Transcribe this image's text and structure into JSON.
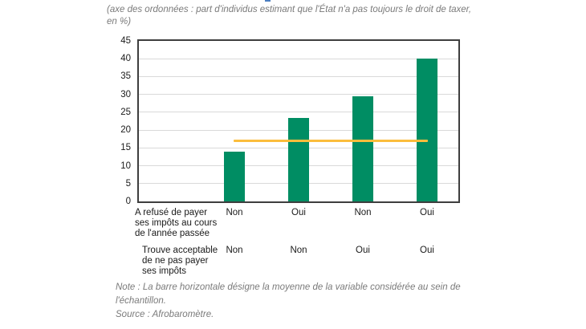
{
  "figure": {
    "axis_note": "(axe des ordonnées : part d'individus estimant que l'État n'a pas toujours le droit de taxer, en %)",
    "note": "Note : La barre horizontale désigne la moyenne de la variable considérée au sein de l'échantillon.",
    "source": "Source : Afrobaromètre."
  },
  "chart_data": {
    "type": "bar",
    "ylabel": "part d'individus estimant que l'État n'a pas toujours le droit de taxer, en %",
    "ylim": [
      0,
      45
    ],
    "ytick_step": 5,
    "grid": true,
    "bar_color": "#008d63",
    "values": [
      14,
      23.5,
      29.5,
      40
    ],
    "mean_line": {
      "value": 17,
      "color": "#fbbd3c"
    },
    "category_rows": [
      {
        "label": "A refusé de payer ses impôts au cours de l'année passée",
        "label_lines": [
          "A refusé de payer",
          "ses impôts au cours",
          "de l'année passée"
        ],
        "values": [
          "Non",
          "Oui",
          "Non",
          "Oui"
        ]
      },
      {
        "label": "Trouve acceptable de ne pas payer ses impôts",
        "label_lines": [
          "Trouve acceptable",
          "de ne pas payer",
          "ses impôts"
        ],
        "values": [
          "Non",
          "Non",
          "Oui",
          "Oui"
        ]
      }
    ],
    "note": "Note : La barre horizontale désigne la moyenne de la variable considérée au sein de l'échantillon.",
    "source": "Source : Afrobaromètre."
  }
}
